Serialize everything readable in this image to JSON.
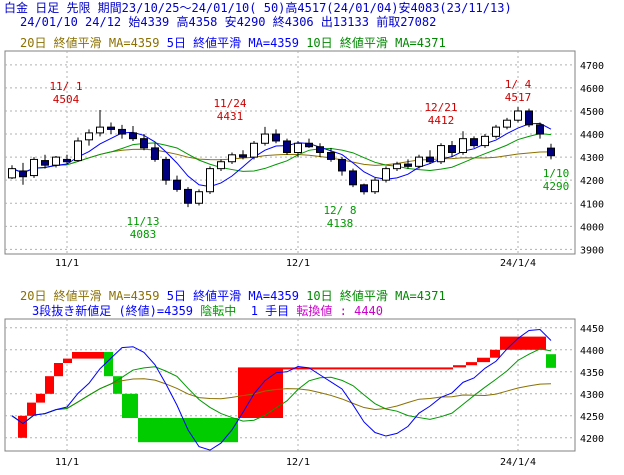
{
  "header": {
    "line1": "白金 日足 先限 期間23/10/25～24/01/10( 50)高4517(24/01/04)安4083(23/11/13)",
    "line2": "24/01/10 24/12 始4339 高4358 安4290 終4306 出13133 前取27082"
  },
  "legend": {
    "ma20": "20日 終値平滑 MA=4359",
    "ma5": "5日 終値平滑 MA=4359",
    "ma10": "10日 終値平滑 MA=4371"
  },
  "bottom_info": {
    "method": "3段抜き新値足 (終値)=4359",
    "trend": "陰転中",
    "count": "1 手目",
    "reversal": "転換値 : 4440"
  },
  "colors": {
    "up": "#ff0000",
    "down": "#00cc00",
    "ma5": "#0000ff",
    "ma10": "#009900",
    "ma20": "#8b7000",
    "text_red": "#cc0000",
    "text_green": "#009900"
  },
  "chart_data": [
    {
      "type": "candlestick",
      "x_ticks": [
        "11/1",
        "12/1",
        "24/1/4"
      ],
      "y_ticks": [
        3900,
        4000,
        4100,
        4200,
        4300,
        4400,
        4500,
        4600,
        4700
      ],
      "ylim": [
        3880,
        4760
      ],
      "annotations": [
        {
          "date": "11/ 1",
          "value": "4504"
        },
        {
          "date": "11/24",
          "value": "4431"
        },
        {
          "date": "12/21",
          "value": "4412"
        },
        {
          "date": "1/ 4",
          "value": "4517"
        },
        {
          "date": "11/13",
          "value": "4083"
        },
        {
          "date": "12/ 8",
          "value": "4138"
        },
        {
          "date": "1/10",
          "value": "4290"
        }
      ],
      "ohlc": [
        [
          4210,
          4265,
          4205,
          4250
        ],
        [
          4240,
          4275,
          4180,
          4215
        ],
        [
          4220,
          4300,
          4210,
          4290
        ],
        [
          4285,
          4310,
          4250,
          4265
        ],
        [
          4265,
          4305,
          4255,
          4300
        ],
        [
          4290,
          4310,
          4270,
          4280
        ],
        [
          4285,
          4385,
          4280,
          4370
        ],
        [
          4375,
          4420,
          4350,
          4405
        ],
        [
          4405,
          4504,
          4390,
          4430
        ],
        [
          4430,
          4450,
          4400,
          4420
        ],
        [
          4420,
          4440,
          4380,
          4400
        ],
        [
          4405,
          4435,
          4370,
          4380
        ],
        [
          4380,
          4400,
          4330,
          4340
        ],
        [
          4340,
          4360,
          4280,
          4290
        ],
        [
          4290,
          4300,
          4180,
          4200
        ],
        [
          4200,
          4220,
          4150,
          4160
        ],
        [
          4160,
          4170,
          4083,
          4100
        ],
        [
          4100,
          4160,
          4090,
          4150
        ],
        [
          4150,
          4260,
          4140,
          4250
        ],
        [
          4250,
          4290,
          4240,
          4280
        ],
        [
          4280,
          4320,
          4270,
          4310
        ],
        [
          4310,
          4330,
          4290,
          4300
        ],
        [
          4300,
          4370,
          4290,
          4360
        ],
        [
          4360,
          4431,
          4350,
          4400
        ],
        [
          4400,
          4420,
          4360,
          4370
        ],
        [
          4370,
          4380,
          4310,
          4320
        ],
        [
          4320,
          4370,
          4300,
          4360
        ],
        [
          4360,
          4380,
          4340,
          4345
        ],
        [
          4345,
          4360,
          4300,
          4320
        ],
        [
          4320,
          4340,
          4280,
          4290
        ],
        [
          4290,
          4300,
          4220,
          4240
        ],
        [
          4240,
          4250,
          4170,
          4180
        ],
        [
          4180,
          4185,
          4138,
          4150
        ],
        [
          4150,
          4210,
          4140,
          4200
        ],
        [
          4200,
          4260,
          4190,
          4250
        ],
        [
          4250,
          4280,
          4240,
          4270
        ],
        [
          4270,
          4290,
          4250,
          4260
        ],
        [
          4260,
          4310,
          4250,
          4300
        ],
        [
          4300,
          4330,
          4270,
          4280
        ],
        [
          4280,
          4360,
          4270,
          4350
        ],
        [
          4350,
          4370,
          4300,
          4320
        ],
        [
          4320,
          4412,
          4310,
          4380
        ],
        [
          4380,
          4390,
          4340,
          4350
        ],
        [
          4350,
          4400,
          4340,
          4390
        ],
        [
          4390,
          4440,
          4380,
          4430
        ],
        [
          4430,
          4470,
          4420,
          4460
        ],
        [
          4460,
          4517,
          4450,
          4500
        ],
        [
          4500,
          4510,
          4430,
          4440
        ],
        [
          4440,
          4450,
          4380,
          4400
        ],
        [
          4339,
          4358,
          4290,
          4306
        ]
      ]
    },
    {
      "type": "step_box",
      "title": "3段抜き新値足 (終値)",
      "x_ticks": [
        "11/1",
        "12/1",
        "24/1/4"
      ],
      "y_ticks": [
        4200,
        4250,
        4300,
        4350,
        4400,
        4450
      ],
      "ylim": [
        4170,
        4470
      ],
      "boxes": [
        {
          "dir": "up",
          "from": 4200,
          "to": 4250
        },
        {
          "dir": "up",
          "from": 4250,
          "to": 4280
        },
        {
          "dir": "up",
          "from": 4280,
          "to": 4300
        },
        {
          "dir": "up",
          "from": 4300,
          "to": 4340
        },
        {
          "dir": "up",
          "from": 4340,
          "to": 4370
        },
        {
          "dir": "up",
          "from": 4370,
          "to": 4380
        },
        {
          "dir": "up",
          "from": 4380,
          "to": 4395
        },
        {
          "dir": "down",
          "from": 4395,
          "to": 4340
        },
        {
          "dir": "down",
          "from": 4340,
          "to": 4300
        },
        {
          "dir": "down",
          "from": 4300,
          "to": 4245
        },
        {
          "dir": "down",
          "from": 4245,
          "to": 4190
        },
        {
          "dir": "up",
          "from": 4245,
          "to": 4360
        },
        {
          "dir": "up",
          "from": 4360,
          "to": 4360
        },
        {
          "dir": "up",
          "from": 4360,
          "to": 4365
        },
        {
          "dir": "up",
          "from": 4365,
          "to": 4372
        },
        {
          "dir": "up",
          "from": 4372,
          "to": 4382
        },
        {
          "dir": "up",
          "from": 4382,
          "to": 4400
        },
        {
          "dir": "up",
          "from": 4400,
          "to": 4430
        },
        {
          "dir": "down",
          "from": 4390,
          "to": 4359
        }
      ]
    }
  ]
}
